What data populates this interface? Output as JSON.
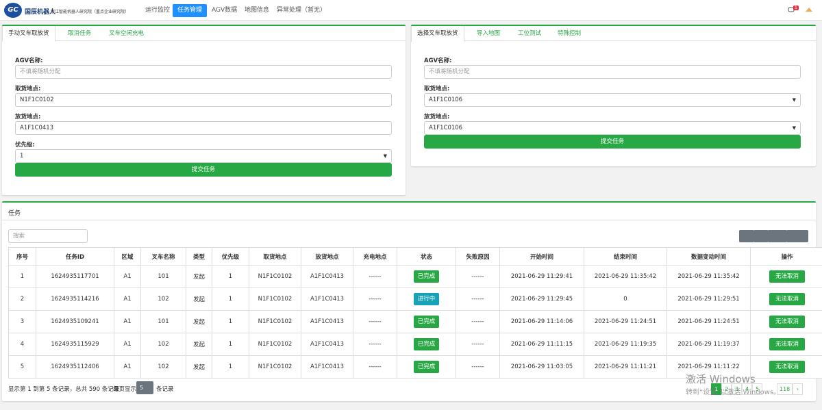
{
  "header": {
    "logo": "GC",
    "brand": "国辰机器人",
    "subtitle": "浙江智能机器人研究院（重点企业研究院）",
    "nav": [
      "运行监控",
      "任务管理",
      "AGV数据",
      "地图信息",
      "异常处理（暂无）"
    ],
    "active_nav": 1,
    "badge": "1"
  },
  "left_panel": {
    "tabs": [
      "手动叉车取放货",
      "取消任务",
      "叉车空闲充电"
    ],
    "active_tab": 0,
    "fields": [
      {
        "label": "AGV名称:",
        "placeholder": "不填将随机分配"
      },
      {
        "label": "取货地点:",
        "value": "N1F1C0102"
      },
      {
        "label": "放货地点:",
        "value": "A1F1C0413"
      },
      {
        "label": "优先级:",
        "value": "1",
        "select": true
      }
    ],
    "submit": "提交任务"
  },
  "right_panel": {
    "tabs": [
      "选择叉车取放货",
      "导入地图",
      "工位测试",
      "特殊控制"
    ],
    "active_tab": 0,
    "fields": [
      {
        "label": "AGV名称:",
        "placeholder": "不填将随机分配"
      },
      {
        "label": "取货地点:",
        "value": "A1F1C0106",
        "select": true
      },
      {
        "label": "放货地点:",
        "value": "A1F1C0106",
        "select": true
      }
    ],
    "submit": "提交任务"
  },
  "table": {
    "title": "任务",
    "search_placeholder": "搜索",
    "columns": [
      "序号",
      "任务ID",
      "区域",
      "叉车名称",
      "类型",
      "优先级",
      "取货地点",
      "放货地点",
      "充电地点",
      "状态",
      "失败原因",
      "开始时间",
      "结束时间",
      "数据变动时间",
      "操作"
    ],
    "rows": [
      [
        "1",
        "1624935117701",
        "A1",
        "101",
        "发起",
        "1",
        "N1F1C0102",
        "A1F1C0413",
        "------",
        "已完成",
        "------",
        "2021-06-29 11:29:41",
        "2021-06-29 11:35:42",
        "2021-06-29 11:35:42",
        "无法取消"
      ],
      [
        "2",
        "1624935114216",
        "A1",
        "102",
        "发起",
        "1",
        "N1F1C0102",
        "A1F1C0413",
        "------",
        "进行中",
        "------",
        "2021-06-29 11:29:45",
        "0",
        "2021-06-29 11:29:51",
        "无法取消"
      ],
      [
        "3",
        "1624935109241",
        "A1",
        "101",
        "发起",
        "1",
        "N1F1C0102",
        "A1F1C0413",
        "------",
        "已完成",
        "------",
        "2021-06-29 11:14:06",
        "2021-06-29 11:24:51",
        "2021-06-29 11:24:51",
        "无法取消"
      ],
      [
        "4",
        "1624935115929",
        "A1",
        "102",
        "发起",
        "1",
        "N1F1C0102",
        "A1F1C0413",
        "------",
        "已完成",
        "------",
        "2021-06-29 11:11:15",
        "2021-06-29 11:19:35",
        "2021-06-29 11:19:37",
        "无法取消"
      ],
      [
        "5",
        "1624935112406",
        "A1",
        "102",
        "发起",
        "1",
        "N1F1C0102",
        "A1F1C0413",
        "------",
        "已完成",
        "------",
        "2021-06-29 11:03:05",
        "2021-06-29 11:11:21",
        "2021-06-29 11:11:22",
        "无法取消"
      ]
    ],
    "status_colors": [
      "#28a745",
      "#17a2b8",
      "#28a745",
      "#28a745",
      "#28a745"
    ],
    "summary": "显示第 1 到第 5 条记录，总共 590 条记录",
    "per_page_label": "每页显示",
    "per_page": "5",
    "per_page_unit": "条记录",
    "pages": [
      "1",
      "2",
      "3",
      "4",
      "5",
      "118",
      "›"
    ],
    "active_page": 0
  },
  "watermark": {
    "line1": "激活 Windows",
    "line2": "转到“设置”以激活 Windows。"
  }
}
